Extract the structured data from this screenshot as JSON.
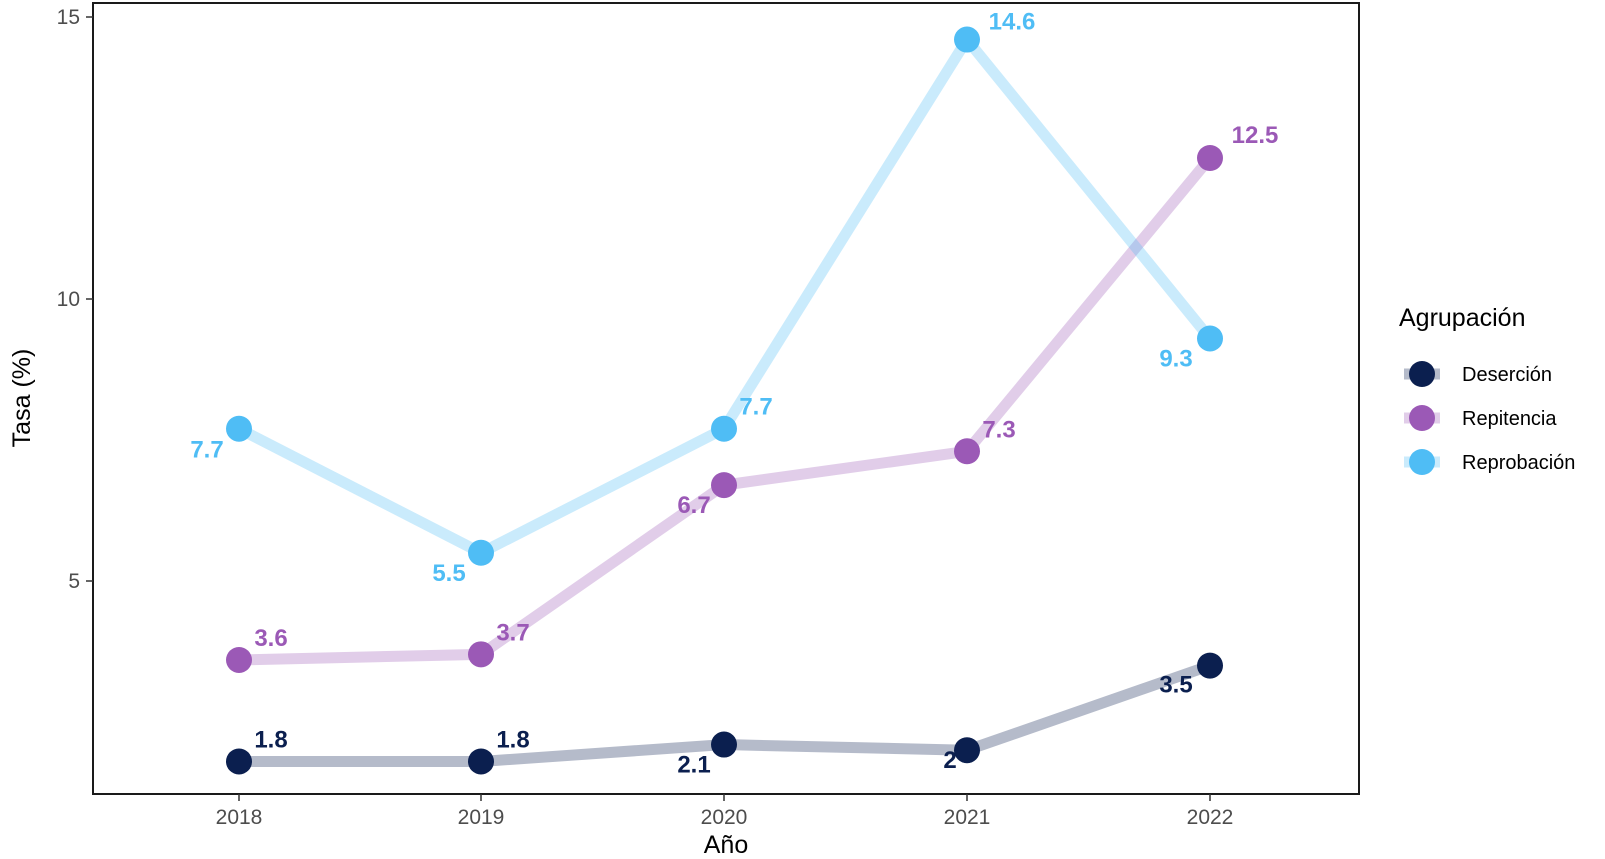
{
  "chart_data": {
    "type": "line",
    "title": "",
    "xlabel": "Año",
    "ylabel": "Tasa (%)",
    "categories": [
      "2018",
      "2019",
      "2020",
      "2021",
      "2022"
    ],
    "yticks": [
      "5",
      "10",
      "15"
    ],
    "ylim": [
      1.3,
      15.2
    ],
    "grid": false,
    "legend": {
      "title": "Agrupación",
      "position": "right"
    },
    "series": [
      {
        "name": "Deserción",
        "color": "#0b1f4f",
        "values": [
          1.8,
          1.8,
          2.1,
          2.0,
          3.5
        ],
        "labels": [
          "1.8",
          "1.8",
          "2.1",
          "2",
          "3.5"
        ]
      },
      {
        "name": "Repitencia",
        "color": "#9b59b6",
        "values": [
          3.6,
          3.7,
          6.7,
          7.3,
          12.5
        ],
        "labels": [
          "3.6",
          "3.7",
          "6.7",
          "7.3",
          "12.5"
        ]
      },
      {
        "name": "Reprobación",
        "color": "#4fbdf5",
        "values": [
          7.7,
          5.5,
          7.7,
          14.6,
          9.3
        ],
        "labels": [
          "7.7",
          "5.5",
          "7.7",
          "14.6",
          "9.3"
        ]
      }
    ]
  }
}
